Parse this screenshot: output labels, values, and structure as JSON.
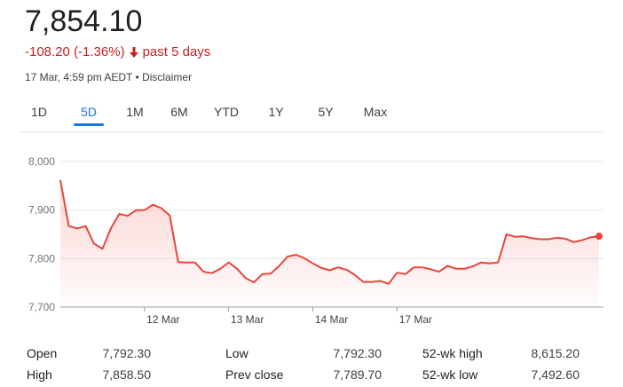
{
  "header": {
    "price": "7,854.10",
    "change": "-108.20 (-1.36%)",
    "period": "past 5 days",
    "timestamp": "17 Mar, 4:59 pm AEDT",
    "separator": "•",
    "disclaimer": "Disclaimer"
  },
  "colors": {
    "down": "#c5221f",
    "accent": "#1a73e8",
    "line": "#e8453c"
  },
  "tabs": [
    {
      "label": "1D",
      "active": false
    },
    {
      "label": "5D",
      "active": true
    },
    {
      "label": "1M",
      "active": false
    },
    {
      "label": "6M",
      "active": false
    },
    {
      "label": "YTD",
      "active": false
    },
    {
      "label": "1Y",
      "active": false
    },
    {
      "label": "5Y",
      "active": false
    },
    {
      "label": "Max",
      "active": false
    }
  ],
  "chart_data": {
    "type": "area",
    "y_ticks": [
      "8,000",
      "7,900",
      "7,800",
      "7,700"
    ],
    "ylim": [
      7700,
      8000
    ],
    "x_ticks": [
      "12 Mar",
      "13 Mar",
      "14 Mar",
      "17 Mar"
    ],
    "x_tick_positions": [
      10,
      20,
      30,
      40
    ],
    "grid": true,
    "series": [
      {
        "values": [
          7962,
          7867,
          7862,
          7867,
          7831,
          7820,
          7862,
          7892,
          7888,
          7900,
          7900,
          7911,
          7904,
          7889,
          7793,
          7792,
          7792,
          7773,
          7770,
          7779,
          7792,
          7779,
          7760,
          7751,
          7768,
          7769,
          7785,
          7804,
          7808,
          7801,
          7790,
          7781,
          7776,
          7782,
          7777,
          7766,
          7752,
          7752,
          7754,
          7748,
          7771,
          7768,
          7782,
          7782,
          7778,
          7773,
          7785,
          7779,
          7779,
          7784,
          7792,
          7790,
          7792,
          7850,
          7845,
          7846,
          7842,
          7840,
          7840,
          7843,
          7841,
          7834,
          7838,
          7844,
          7846
        ]
      }
    ]
  },
  "stats": {
    "open_label": "Open",
    "open": "7,792.30",
    "high_label": "High",
    "high": "7,858.50",
    "low_label": "Low",
    "low": "7,792.30",
    "prev_close_label": "Prev close",
    "prev_close": "7,789.70",
    "wk52_high_label": "52-wk high",
    "wk52_high": "8,615.20",
    "wk52_low_label": "52-wk low",
    "wk52_low": "7,492.60"
  }
}
